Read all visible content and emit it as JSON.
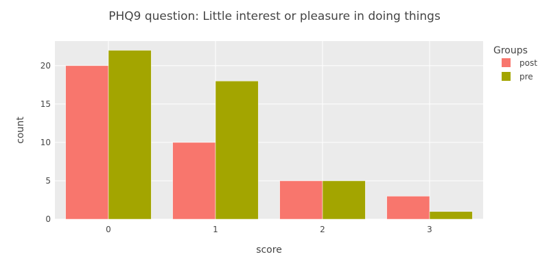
{
  "chart_data": {
    "type": "bar",
    "title": "PHQ9 question: Little interest or pleasure in doing things",
    "xlabel": "score",
    "ylabel": "count",
    "categories": [
      "0",
      "1",
      "2",
      "3"
    ],
    "series": [
      {
        "name": "post",
        "color": "#F8766D",
        "values": [
          20,
          10,
          5,
          3
        ]
      },
      {
        "name": "pre",
        "color": "#A3A500",
        "values": [
          22,
          18,
          5,
          1
        ]
      }
    ],
    "ylim": [
      0,
      23.2
    ],
    "yticks": [
      0,
      5,
      10,
      15,
      20
    ],
    "grid": true,
    "legend": {
      "title": "Groups",
      "position": "right"
    },
    "plot_background": "#EBEBEB"
  }
}
